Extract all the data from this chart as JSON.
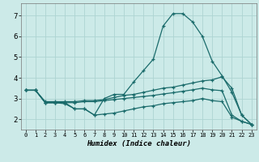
{
  "xlabel": "Humidex (Indice chaleur)",
  "background_color": "#cceae8",
  "grid_color": "#aed4d2",
  "line_color": "#1a6b6b",
  "xlim": [
    -0.5,
    23.5
  ],
  "ylim": [
    1.5,
    7.6
  ],
  "xticks": [
    0,
    1,
    2,
    3,
    4,
    5,
    6,
    7,
    8,
    9,
    10,
    11,
    12,
    13,
    14,
    15,
    16,
    17,
    18,
    19,
    20,
    21,
    22,
    23
  ],
  "yticks": [
    2,
    3,
    4,
    5,
    6,
    7
  ],
  "line1_x": [
    0,
    1,
    2,
    3,
    4,
    5,
    6,
    7,
    8,
    9,
    10,
    11,
    12,
    13,
    14,
    15,
    16,
    17,
    18,
    19,
    20,
    21,
    22,
    23
  ],
  "line1_y": [
    3.4,
    3.4,
    2.8,
    2.8,
    2.8,
    2.5,
    2.5,
    2.2,
    3.0,
    3.2,
    3.2,
    3.8,
    4.35,
    4.9,
    6.5,
    7.1,
    7.1,
    6.7,
    6.0,
    4.8,
    4.1,
    3.3,
    2.2,
    1.75
  ],
  "line2_x": [
    0,
    1,
    2,
    3,
    4,
    5,
    6,
    7,
    8,
    9,
    10,
    11,
    12,
    13,
    14,
    15,
    16,
    17,
    18,
    19,
    20,
    21,
    22,
    23
  ],
  "line2_y": [
    3.4,
    3.4,
    2.85,
    2.85,
    2.85,
    2.85,
    2.9,
    2.9,
    2.95,
    3.05,
    3.15,
    3.2,
    3.3,
    3.4,
    3.5,
    3.55,
    3.65,
    3.75,
    3.85,
    3.9,
    4.05,
    3.5,
    2.2,
    1.75
  ],
  "line3_x": [
    0,
    1,
    2,
    3,
    4,
    5,
    6,
    7,
    8,
    9,
    10,
    11,
    12,
    13,
    14,
    15,
    16,
    17,
    18,
    19,
    20,
    21,
    22,
    23
  ],
  "line3_y": [
    3.4,
    3.4,
    2.8,
    2.8,
    2.8,
    2.8,
    2.85,
    2.85,
    2.9,
    2.95,
    3.0,
    3.05,
    3.1,
    3.15,
    3.22,
    3.28,
    3.35,
    3.42,
    3.5,
    3.42,
    3.38,
    2.2,
    1.9,
    1.75
  ],
  "line4_x": [
    0,
    1,
    2,
    3,
    4,
    5,
    6,
    7,
    8,
    9,
    10,
    11,
    12,
    13,
    14,
    15,
    16,
    17,
    18,
    19,
    20,
    21,
    22,
    23
  ],
  "line4_y": [
    3.4,
    3.4,
    2.8,
    2.8,
    2.75,
    2.5,
    2.5,
    2.2,
    2.25,
    2.3,
    2.4,
    2.5,
    2.6,
    2.65,
    2.75,
    2.8,
    2.85,
    2.9,
    3.0,
    2.9,
    2.85,
    2.1,
    1.9,
    1.75
  ]
}
